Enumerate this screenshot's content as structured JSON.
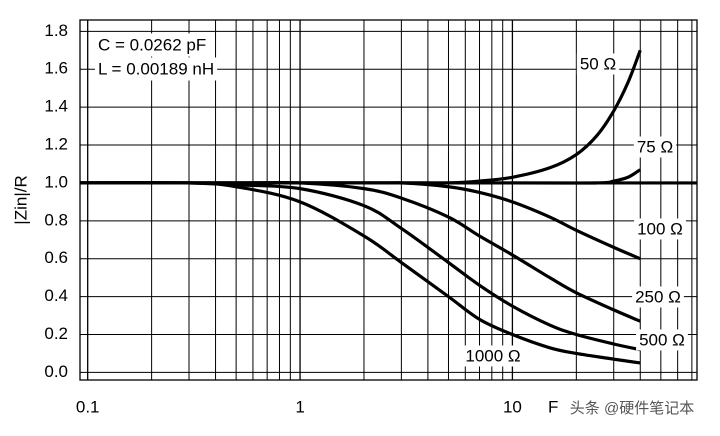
{
  "chart_data": {
    "type": "line",
    "y_label": "|Zin|/R",
    "x_label": "F",
    "annotations": [
      "C = 0.0262 pF",
      "L = 0.00189 nH"
    ],
    "watermark": "头条 @硬件笔记本",
    "log_x": true,
    "grid": true,
    "xlim": [
      0.092,
      74
    ],
    "ylim": [
      -0.04,
      1.86
    ],
    "xticks": [
      0.1,
      1,
      10
    ],
    "xminor": [
      0.2,
      0.3,
      0.4,
      0.5,
      0.6,
      0.7,
      0.8,
      0.9,
      2,
      3,
      4,
      5,
      6,
      7,
      8,
      9,
      20,
      30,
      40,
      50,
      60,
      70
    ],
    "yticks": [
      {
        "value": 0,
        "label": "0.0"
      },
      0.2,
      0.4,
      0.6,
      0.8,
      {
        "value": 1,
        "label": "1.0"
      },
      1.2,
      1.4,
      1.6,
      1.8
    ],
    "series": [
      {
        "name": "50 Ω",
        "color": "#000000",
        "x": [
          0.092,
          1,
          3,
          5,
          7,
          10,
          15,
          20,
          25,
          30,
          35,
          40
        ],
        "values": [
          1,
          1,
          1,
          1,
          1.01,
          1.03,
          1.08,
          1.15,
          1.25,
          1.38,
          1.53,
          1.7
        ]
      },
      {
        "name": "75 Ω",
        "color": "#000000",
        "x": [
          0.092,
          10,
          25,
          30,
          35,
          40
        ],
        "values": [
          1,
          1,
          1,
          1.01,
          1.03,
          1.07
        ]
      },
      {
        "color": "#000000",
        "x": [
          0.092,
          74
        ],
        "values": [
          1,
          1
        ]
      },
      {
        "name": "100 Ω",
        "color": "#000000",
        "x": [
          0.092,
          2,
          3,
          5,
          7,
          10,
          15,
          20,
          30,
          40
        ],
        "values": [
          1,
          1,
          1,
          0.98,
          0.95,
          0.9,
          0.82,
          0.75,
          0.66,
          0.6
        ]
      },
      {
        "name": "250 Ω",
        "color": "#000000",
        "x": [
          0.092,
          0.5,
          1,
          2,
          3,
          5,
          7,
          10,
          15,
          20,
          30,
          40
        ],
        "values": [
          1,
          1,
          1,
          0.97,
          0.92,
          0.82,
          0.72,
          0.62,
          0.5,
          0.42,
          0.33,
          0.27
        ]
      },
      {
        "name": "500 Ω",
        "color": "#000000",
        "x": [
          0.092,
          0.3,
          0.5,
          1,
          2,
          3,
          5,
          7,
          10,
          15,
          20,
          30,
          40
        ],
        "values": [
          1,
          1,
          0.99,
          0.97,
          0.88,
          0.76,
          0.58,
          0.46,
          0.35,
          0.25,
          0.2,
          0.15,
          0.12
        ]
      },
      {
        "name": "1000 Ω",
        "color": "#000000",
        "x": [
          0.092,
          0.3,
          0.5,
          1,
          2,
          3,
          5,
          7,
          10,
          15,
          20,
          30,
          40
        ],
        "values": [
          1,
          1,
          0.98,
          0.9,
          0.72,
          0.58,
          0.4,
          0.28,
          0.2,
          0.13,
          0.1,
          0.07,
          0.05
        ]
      }
    ]
  }
}
